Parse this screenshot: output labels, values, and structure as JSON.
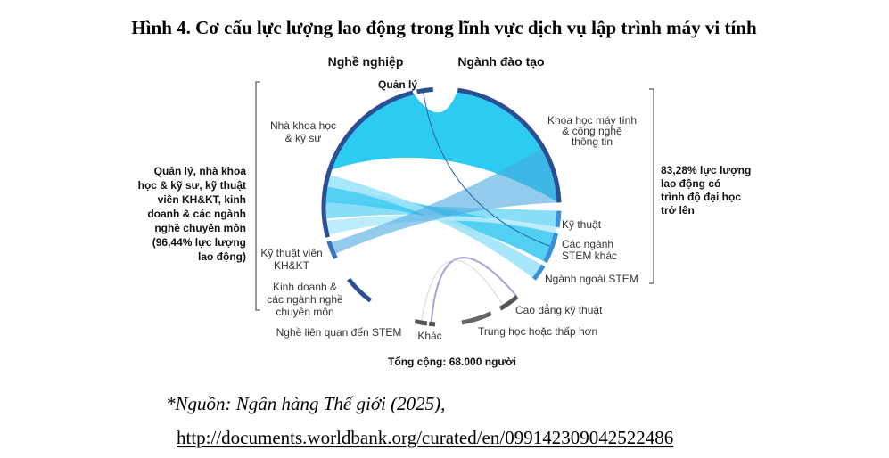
{
  "header": {
    "title": "Hình 4. Cơ cấu lực lượng lao động trong lĩnh vực dịch vụ lập trình máy vi tính"
  },
  "diagram": {
    "left_header": "Nghề nghiệp",
    "right_header": "Ngành đào tạo",
    "left_nodes": [
      {
        "lines": [
          "Quản lý"
        ]
      },
      {
        "lines": [
          "Nhà khoa học",
          "& kỹ sư"
        ]
      },
      {
        "lines": [
          "Kỹ thuật viên",
          "KH&KT"
        ]
      },
      {
        "lines": [
          "Kinh doanh &",
          "các ngành nghề",
          "chuyên môn"
        ]
      },
      {
        "lines": [
          "Nghề liên quan đến STEM"
        ]
      },
      {
        "lines": [
          "Khác"
        ]
      }
    ],
    "right_nodes": [
      {
        "lines": [
          "Khoa học máy tính",
          "& công nghệ",
          "thông tin"
        ]
      },
      {
        "lines": [
          "Kỹ thuật"
        ]
      },
      {
        "lines": [
          "Các ngành",
          "STEM khác"
        ]
      },
      {
        "lines": [
          "Ngành ngoài STEM"
        ]
      },
      {
        "lines": [
          "Cao đẳng kỹ thuật"
        ]
      },
      {
        "lines": [
          "Trung học hoặc thấp hơn"
        ]
      }
    ],
    "left_note": [
      "Quản lý, nhà khoa",
      "học & kỹ sư, kỹ thuật",
      "viên KH&KT, kinh",
      "doanh & các ngành",
      "nghề chuyên môn",
      "(96,44% lực lượng",
      "lao động)"
    ],
    "right_note": [
      "83,28% lực lượng",
      "lao động có",
      "trình độ đại học",
      "trở lên"
    ],
    "total": "Tổng cộng: 68.000 người"
  },
  "footer": {
    "source": "*Nguồn: Ngân hàng Thế giới (2025),",
    "url": "http://documents.worldbank.org/curated/en/099142309042522486"
  }
}
